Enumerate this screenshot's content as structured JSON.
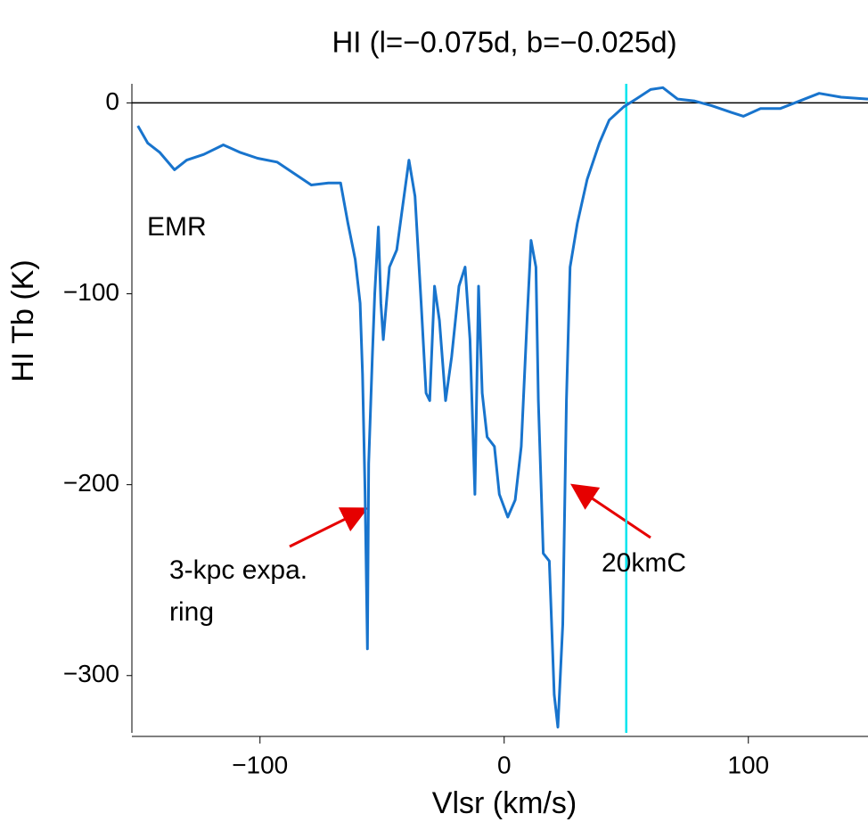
{
  "chart_data": {
    "type": "line",
    "title": "HI (l=−0.075d, b=−0.025d)",
    "x_label": "Vlsr (km/s)",
    "y_label": "HI Tb (K)",
    "x": [
      -150,
      -146,
      -141,
      -135,
      -130,
      -123,
      -115,
      -108,
      -101,
      -93,
      -86,
      -79,
      -72,
      -67,
      -64,
      -61,
      -59,
      -58,
      -57,
      -56,
      -55.5,
      -54,
      -53,
      -51.5,
      -50.5,
      -49.5,
      -47,
      -44,
      -42,
      -39,
      -36.5,
      -34,
      -32,
      -30.5,
      -28.5,
      -26.5,
      -24,
      -21.5,
      -18.5,
      -16,
      -14,
      -12,
      -10.5,
      -9,
      -7,
      -4,
      -2,
      1.5,
      4.5,
      7,
      9.5,
      11,
      13,
      14,
      16,
      18.5,
      20.5,
      22,
      24,
      25.5,
      27,
      30,
      34,
      39,
      43,
      49,
      54,
      60,
      65,
      71,
      78,
      85,
      93,
      98,
      105,
      113,
      122,
      129,
      138,
      149
    ],
    "series": [
      {
        "name": "HI",
        "color": "#1874cd",
        "values": [
          -12,
          -21,
          -26,
          -35,
          -30,
          -27,
          -22,
          -26,
          -29,
          -31,
          -37,
          -43,
          -42,
          -42,
          -63,
          -82,
          -105,
          -142,
          -203,
          -286,
          -189,
          -133,
          -100,
          -65,
          -105,
          -124,
          -86,
          -77,
          -58,
          -30,
          -49,
          -105,
          -152,
          -156,
          -96,
          -114,
          -156,
          -133,
          -96,
          -86,
          -124,
          -205,
          -96,
          -152,
          -175,
          -180,
          -205,
          -217,
          -208,
          -180,
          -110,
          -72,
          -86,
          -156,
          -236,
          -240,
          -310,
          -327,
          -273,
          -156,
          -86,
          -63,
          -40,
          -21,
          -9,
          -2,
          2,
          7,
          8,
          2,
          1,
          -1.5,
          -5,
          -7,
          -3,
          -3,
          1.5,
          5,
          3,
          2
        ]
      }
    ],
    "xlim": [
      -151,
      149
    ],
    "ylim": [
      -330,
      10
    ],
    "xticks": [
      {
        "value": -100,
        "label": "−100"
      },
      0,
      100
    ],
    "yticks": [
      {
        "value": -300,
        "label": "−300"
      },
      {
        "value": -200,
        "label": "−200"
      },
      {
        "value": -100,
        "label": "−100"
      },
      0
    ],
    "hline": 0,
    "hline_color": "#000000",
    "vline": 50,
    "vline_color": "#00e5ee",
    "annotations": [
      {
        "text": "EMR"
      },
      {
        "text": [
          "3-kpc expa.",
          "ring"
        ]
      },
      {
        "text": "20kmC"
      }
    ]
  }
}
